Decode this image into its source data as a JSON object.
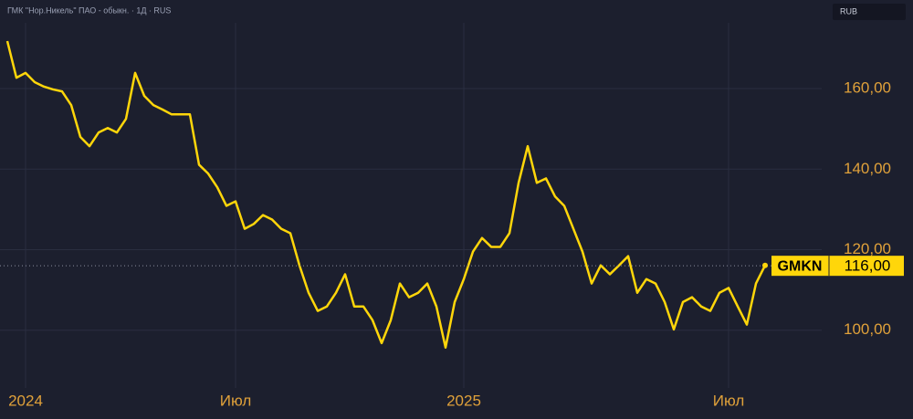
{
  "chart_data": {
    "type": "line",
    "title": "ГМК \"Нор.Никель\" ПАО - обыкн. · 1Д · RUS",
    "currency": "RUB",
    "color": "#ffd60a",
    "grid": true,
    "categories": [
      null,
      null,
      "2024",
      null,
      null,
      null,
      null,
      null,
      null,
      null,
      null,
      null,
      null,
      null,
      null,
      null,
      null,
      null,
      null,
      null,
      null,
      null,
      null,
      null,
      null,
      "Июл",
      null,
      null,
      null,
      null,
      null,
      null,
      null,
      null,
      null,
      null,
      null,
      null,
      null,
      null,
      null,
      null,
      null,
      null,
      null,
      null,
      null,
      null,
      null,
      null,
      "2025",
      null,
      null,
      null,
      null,
      null,
      null,
      null,
      null,
      null,
      null,
      null,
      null,
      null,
      null,
      null,
      null,
      null,
      null,
      null,
      null,
      null,
      null,
      null,
      null,
      null,
      null,
      null,
      null,
      "Июл",
      null,
      null,
      null,
      null
    ],
    "values": [
      171.8,
      162.7,
      163.9,
      161.6,
      160.5,
      159.8,
      159.3,
      155.9,
      148,
      145.7,
      149.1,
      150.2,
      149.1,
      152.5,
      163.9,
      158.2,
      155.9,
      154.8,
      153.6,
      153.6,
      153.6,
      141.1,
      138.9,
      135.5,
      130.9,
      132,
      125.2,
      126.4,
      128.6,
      127.5,
      125.2,
      124.1,
      116.1,
      109.3,
      104.8,
      105.9,
      109.3,
      113.9,
      105.9,
      105.9,
      102.5,
      96.8,
      102.5,
      111.6,
      108.2,
      109.3,
      111.6,
      105.9,
      95.7,
      107,
      112.7,
      119.5,
      122.9,
      120.7,
      120.7,
      124.1,
      136.6,
      145.7,
      136.6,
      137.7,
      133.2,
      130.9,
      125.2,
      119.5,
      111.6,
      116.1,
      113.9,
      116.1,
      118.4,
      109.3,
      112.7,
      111.6,
      107,
      100.2,
      107,
      108.2,
      105.9,
      104.8,
      109.3,
      110.5,
      105.9,
      101.4,
      111.6,
      116.1
    ],
    "ylim": [
      86.8,
      182
    ],
    "yticks": [
      {
        "value": 100,
        "label": "100,00"
      },
      {
        "value": 120,
        "label": "120,00"
      },
      {
        "value": 140,
        "label": "140,00"
      },
      {
        "value": 160,
        "label": "160,00"
      }
    ],
    "price_tag": {
      "ticker": "GMKN",
      "value": 116,
      "label": "116,00"
    }
  }
}
